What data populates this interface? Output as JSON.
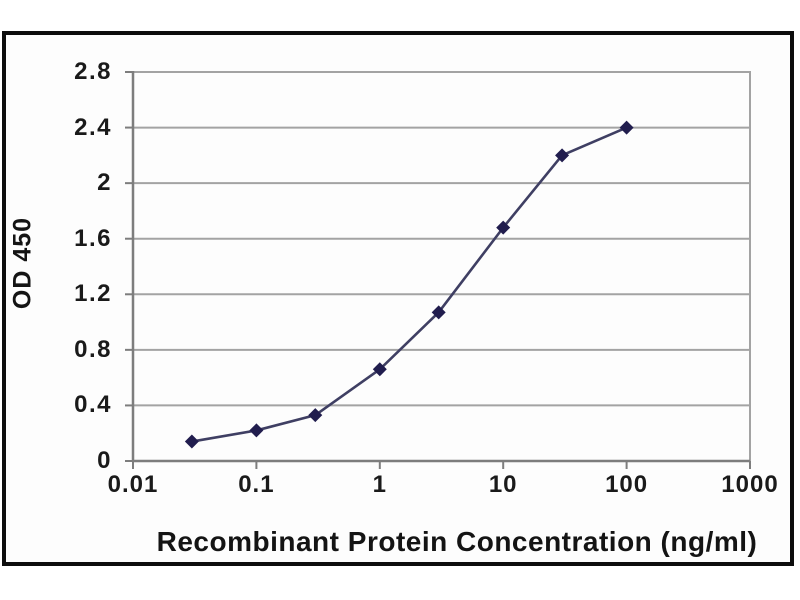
{
  "chart_data": {
    "type": "line",
    "title": "",
    "xlabel": "Recombinant Protein Concentration (ng/ml)",
    "ylabel": "OD 450",
    "x_scale": "log",
    "xlim": [
      0.01,
      1000
    ],
    "ylim": [
      0,
      2.8
    ],
    "xticks": [
      0.01,
      0.1,
      1,
      10,
      100,
      1000
    ],
    "xtick_labels": [
      "0.01",
      "0.1",
      "1",
      "10",
      "100",
      "1000"
    ],
    "yticks": [
      0,
      0.4,
      0.8,
      1.2,
      1.6,
      2,
      2.4,
      2.8
    ],
    "ytick_labels": [
      "0",
      "0.4",
      "0.8",
      "1.2",
      "1.6",
      "2",
      "2.4",
      "2.8"
    ],
    "grid": "horizontal",
    "legend": "none",
    "series": [
      {
        "name": "OD 450",
        "marker": "diamond",
        "x": [
          0.03,
          0.1,
          0.3,
          1,
          3,
          10,
          30,
          100
        ],
        "y": [
          0.14,
          0.22,
          0.33,
          0.66,
          1.07,
          1.68,
          2.2,
          2.4
        ]
      }
    ],
    "colors": {
      "line": "#3f3f63",
      "marker": "#211d4e",
      "gridline": "#a3a3a3",
      "axis": "#7d7d7d",
      "text": "#1a1a1a",
      "frame_border": "#0d0d0d",
      "plot_background": "#fdfdfd"
    }
  }
}
